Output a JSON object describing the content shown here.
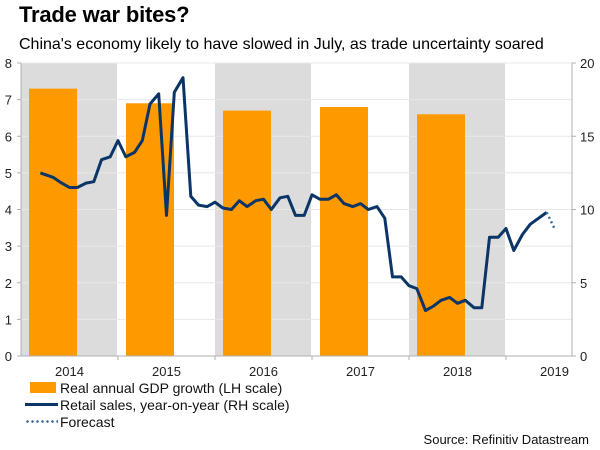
{
  "header": {
    "title": "Trade war bites?",
    "subtitle": "China's economy likely to have slowed in July, as trade uncertainty soared"
  },
  "source": "Source: Refinitiv Datastream",
  "colors": {
    "gdp_bar": "#FF9900",
    "retail_line": "#0A3566",
    "forecast": "#3B6A99",
    "band": "#DCDCDC",
    "grid": "#E8E8E8",
    "axis": "#B0B0B0"
  },
  "chart_data": {
    "type": "bar+line",
    "title": "Trade war bites?",
    "subtitle": "China's economy likely to have slowed in July, as trade uncertainty soared",
    "x_categories": [
      "2014",
      "2015",
      "2016",
      "2017",
      "2018",
      "2019"
    ],
    "shaded_years": [
      "2014",
      "2016",
      "2018"
    ],
    "left_axis": {
      "label": "LH scale",
      "ylim": [
        0,
        8
      ],
      "ticks": [
        0,
        1,
        2,
        3,
        4,
        5,
        6,
        7,
        8
      ]
    },
    "right_axis": {
      "label": "RH scale",
      "ylim": [
        0,
        20
      ],
      "ticks": [
        0,
        5,
        10,
        15,
        20
      ]
    },
    "grid": true,
    "legend": [
      {
        "label": "Real annual GDP growth (LH scale)",
        "kind": "bar"
      },
      {
        "label": "Retail sales, year-on-year (RH scale)",
        "kind": "line"
      },
      {
        "label": "Forecast",
        "kind": "dotted"
      }
    ],
    "legend_position": "bottom-left",
    "series": [
      {
        "name": "Real annual GDP growth (LH scale)",
        "type": "bar",
        "axis": "left",
        "categories": [
          "2014",
          "2015",
          "2016",
          "2017",
          "2018"
        ],
        "values": [
          7.3,
          6.9,
          6.7,
          6.8,
          6.6
        ]
      },
      {
        "name": "Retail sales, year-on-year (RH scale)",
        "type": "line",
        "axis": "right",
        "x_year_fraction": [
          2014.2,
          2014.33,
          2014.42,
          2014.5,
          2014.58,
          2014.67,
          2014.75,
          2014.83,
          2014.92,
          2015.0,
          2015.08,
          2015.17,
          2015.25,
          2015.33,
          2015.42,
          2015.5,
          2015.58,
          2015.67,
          2015.75,
          2015.83,
          2015.92,
          2016.0,
          2016.08,
          2016.17,
          2016.25,
          2016.33,
          2016.42,
          2016.5,
          2016.58,
          2016.67,
          2016.75,
          2016.83,
          2016.92,
          2017.0,
          2017.08,
          2017.17,
          2017.25,
          2017.33,
          2017.42,
          2017.5,
          2017.58,
          2017.67,
          2017.75,
          2017.83,
          2017.92,
          2018.0,
          2018.08,
          2018.17,
          2018.25,
          2018.33,
          2018.42,
          2018.5,
          2018.58,
          2018.67,
          2018.75,
          2018.83,
          2018.92,
          2019.0,
          2019.08,
          2019.17,
          2019.25,
          2019.42
        ],
        "values": [
          12.5,
          12.2,
          11.8,
          11.5,
          11.5,
          11.8,
          11.9,
          13.4,
          13.6,
          14.7,
          13.6,
          13.9,
          14.7,
          17.2,
          17.9,
          9.6,
          18.0,
          19.0,
          10.9,
          10.3,
          10.2,
          10.5,
          10.1,
          10.0,
          10.6,
          10.2,
          10.6,
          10.7,
          10.0,
          10.8,
          10.9,
          9.6,
          9.6,
          11.0,
          10.7,
          10.7,
          11.0,
          10.4,
          10.2,
          10.4,
          10.0,
          10.2,
          9.4,
          5.4,
          5.4,
          4.8,
          4.6,
          3.1,
          3.4,
          3.8,
          4.0,
          3.6,
          3.8,
          3.3,
          3.3,
          8.1,
          8.1,
          8.7,
          7.2,
          8.3,
          9.0,
          9.8
        ]
      },
      {
        "name": "Forecast",
        "type": "line",
        "style": "dotted",
        "axis": "right",
        "x_year_fraction": [
          2019.42,
          2019.5
        ],
        "values": [
          9.8,
          8.7
        ]
      }
    ]
  }
}
